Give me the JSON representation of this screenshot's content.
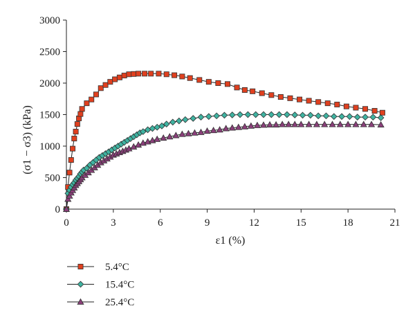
{
  "chart_data": {
    "type": "line",
    "xlabel": "ε1 (%)",
    "ylabel": "(σ1 − σ3) (kPa)",
    "xlim": [
      0,
      21
    ],
    "ylim": [
      0,
      3000
    ],
    "x_ticks": [
      "0",
      "3",
      "6",
      "9",
      "12",
      "15",
      "18",
      "21"
    ],
    "y_ticks": [
      "0",
      "500",
      "1000",
      "1500",
      "2000",
      "2500",
      "3000"
    ],
    "grid": false,
    "legend_position": "bottom-left",
    "series": [
      {
        "name": "5.4°C",
        "marker": "square",
        "color": "#e0401f",
        "points": [
          [
            0,
            0
          ],
          [
            0.1,
            350
          ],
          [
            0.2,
            580
          ],
          [
            0.3,
            780
          ],
          [
            0.4,
            960
          ],
          [
            0.5,
            1120
          ],
          [
            0.6,
            1230
          ],
          [
            0.7,
            1350
          ],
          [
            0.8,
            1440
          ],
          [
            0.9,
            1510
          ],
          [
            1.0,
            1590
          ],
          [
            1.3,
            1680
          ],
          [
            1.6,
            1740
          ],
          [
            1.9,
            1820
          ],
          [
            2.2,
            1920
          ],
          [
            2.5,
            1970
          ],
          [
            2.8,
            2020
          ],
          [
            3.1,
            2060
          ],
          [
            3.4,
            2090
          ],
          [
            3.7,
            2120
          ],
          [
            4.0,
            2140
          ],
          [
            4.3,
            2145
          ],
          [
            4.6,
            2150
          ],
          [
            5.0,
            2150
          ],
          [
            5.4,
            2150
          ],
          [
            5.9,
            2150
          ],
          [
            6.4,
            2140
          ],
          [
            6.9,
            2125
          ],
          [
            7.4,
            2105
          ],
          [
            7.9,
            2080
          ],
          [
            8.5,
            2050
          ],
          [
            9.1,
            2020
          ],
          [
            9.7,
            2000
          ],
          [
            10.3,
            1985
          ],
          [
            10.9,
            1930
          ],
          [
            11.4,
            1890
          ],
          [
            11.9,
            1870
          ],
          [
            12.5,
            1840
          ],
          [
            13.1,
            1810
          ],
          [
            13.7,
            1780
          ],
          [
            14.3,
            1760
          ],
          [
            14.9,
            1740
          ],
          [
            15.5,
            1720
          ],
          [
            16.1,
            1700
          ],
          [
            16.7,
            1680
          ],
          [
            17.3,
            1660
          ],
          [
            17.9,
            1630
          ],
          [
            18.5,
            1610
          ],
          [
            19.1,
            1590
          ],
          [
            19.7,
            1560
          ],
          [
            20.2,
            1530
          ]
        ]
      },
      {
        "name": "15.4°C",
        "marker": "diamond",
        "color": "#3fb3a1",
        "points": [
          [
            0,
            0
          ],
          [
            0.1,
            250
          ],
          [
            0.2,
            300
          ],
          [
            0.3,
            350
          ],
          [
            0.4,
            390
          ],
          [
            0.5,
            420
          ],
          [
            0.6,
            460
          ],
          [
            0.7,
            490
          ],
          [
            0.8,
            520
          ],
          [
            0.9,
            560
          ],
          [
            1.0,
            590
          ],
          [
            1.1,
            620
          ],
          [
            1.3,
            650
          ],
          [
            1.5,
            700
          ],
          [
            1.7,
            740
          ],
          [
            1.9,
            780
          ],
          [
            2.1,
            820
          ],
          [
            2.3,
            850
          ],
          [
            2.5,
            880
          ],
          [
            2.7,
            910
          ],
          [
            2.9,
            940
          ],
          [
            3.1,
            970
          ],
          [
            3.3,
            1000
          ],
          [
            3.5,
            1030
          ],
          [
            3.7,
            1060
          ],
          [
            3.9,
            1090
          ],
          [
            4.1,
            1120
          ],
          [
            4.3,
            1150
          ],
          [
            4.5,
            1180
          ],
          [
            4.7,
            1210
          ],
          [
            4.9,
            1230
          ],
          [
            5.2,
            1260
          ],
          [
            5.5,
            1280
          ],
          [
            5.8,
            1300
          ],
          [
            6.1,
            1320
          ],
          [
            6.4,
            1350
          ],
          [
            6.8,
            1380
          ],
          [
            7.2,
            1400
          ],
          [
            7.6,
            1420
          ],
          [
            8.1,
            1440
          ],
          [
            8.6,
            1460
          ],
          [
            9.1,
            1470
          ],
          [
            9.6,
            1480
          ],
          [
            10.1,
            1490
          ],
          [
            10.6,
            1495
          ],
          [
            11.1,
            1500
          ],
          [
            11.6,
            1500
          ],
          [
            12.1,
            1500
          ],
          [
            12.6,
            1500
          ],
          [
            13.1,
            1500
          ],
          [
            13.6,
            1500
          ],
          [
            14.1,
            1500
          ],
          [
            14.6,
            1495
          ],
          [
            15.1,
            1490
          ],
          [
            15.6,
            1490
          ],
          [
            16.1,
            1480
          ],
          [
            16.6,
            1480
          ],
          [
            17.1,
            1470
          ],
          [
            17.6,
            1470
          ],
          [
            18.1,
            1470
          ],
          [
            18.6,
            1460
          ],
          [
            19.1,
            1460
          ],
          [
            19.6,
            1460
          ],
          [
            20.1,
            1450
          ]
        ]
      },
      {
        "name": "25.4°C",
        "marker": "triangle",
        "color": "#8a3f7a",
        "points": [
          [
            0,
            0
          ],
          [
            0.1,
            160
          ],
          [
            0.2,
            210
          ],
          [
            0.3,
            260
          ],
          [
            0.4,
            300
          ],
          [
            0.5,
            340
          ],
          [
            0.6,
            380
          ],
          [
            0.7,
            410
          ],
          [
            0.8,
            440
          ],
          [
            0.9,
            470
          ],
          [
            1.0,
            500
          ],
          [
            1.2,
            540
          ],
          [
            1.4,
            580
          ],
          [
            1.6,
            620
          ],
          [
            1.8,
            660
          ],
          [
            2.0,
            700
          ],
          [
            2.2,
            740
          ],
          [
            2.4,
            770
          ],
          [
            2.6,
            800
          ],
          [
            2.8,
            830
          ],
          [
            3.0,
            860
          ],
          [
            3.2,
            880
          ],
          [
            3.4,
            900
          ],
          [
            3.6,
            920
          ],
          [
            3.8,
            940
          ],
          [
            4.0,
            960
          ],
          [
            4.3,
            990
          ],
          [
            4.6,
            1020
          ],
          [
            4.9,
            1050
          ],
          [
            5.2,
            1070
          ],
          [
            5.5,
            1090
          ],
          [
            5.8,
            1110
          ],
          [
            6.2,
            1130
          ],
          [
            6.6,
            1150
          ],
          [
            7.0,
            1170
          ],
          [
            7.4,
            1190
          ],
          [
            7.8,
            1200
          ],
          [
            8.2,
            1210
          ],
          [
            8.6,
            1220
          ],
          [
            9.0,
            1240
          ],
          [
            9.4,
            1250
          ],
          [
            9.8,
            1260
          ],
          [
            10.2,
            1280
          ],
          [
            10.6,
            1290
          ],
          [
            11.0,
            1300
          ],
          [
            11.4,
            1310
          ],
          [
            11.8,
            1320
          ],
          [
            12.2,
            1330
          ],
          [
            12.6,
            1335
          ],
          [
            13.0,
            1340
          ],
          [
            13.4,
            1340
          ],
          [
            13.8,
            1345
          ],
          [
            14.2,
            1345
          ],
          [
            14.6,
            1345
          ],
          [
            15.0,
            1345
          ],
          [
            15.5,
            1345
          ],
          [
            16.0,
            1345
          ],
          [
            16.5,
            1345
          ],
          [
            17.0,
            1345
          ],
          [
            17.5,
            1345
          ],
          [
            18.0,
            1345
          ],
          [
            18.5,
            1345
          ],
          [
            19.0,
            1345
          ],
          [
            19.5,
            1345
          ],
          [
            20.1,
            1340
          ]
        ]
      }
    ]
  }
}
